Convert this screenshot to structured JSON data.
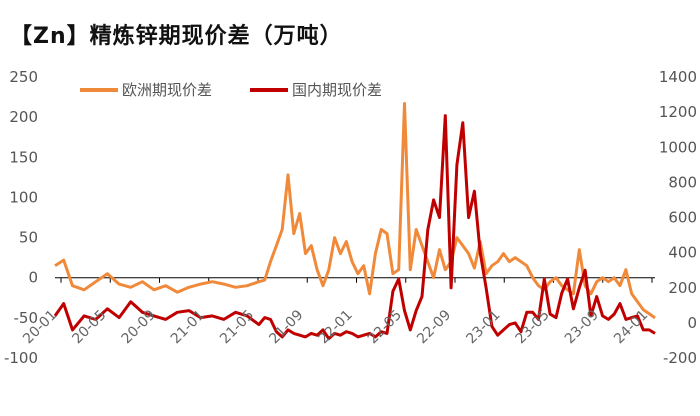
{
  "chart_data": {
    "type": "line",
    "title": "【Zn】精炼锌期现价差（万吨）",
    "y_left": {
      "ticks": [
        "250",
        "200",
        "150",
        "100",
        "50",
        "0",
        "-50",
        "-100"
      ],
      "range": [
        -100,
        250
      ]
    },
    "y_right": {
      "ticks": [
        "1400",
        "1200",
        "1000",
        "800",
        "600",
        "400",
        "200",
        "0",
        "-200"
      ],
      "range": [
        -200,
        1400
      ]
    },
    "x_ticks": [
      "20-01",
      "20-05",
      "20-09",
      "21-01",
      "21-05",
      "21-09",
      "22-01",
      "22-05",
      "22-09",
      "23-01",
      "23-05",
      "23-09",
      "24-01"
    ],
    "grid": false,
    "legend_position": "top-left",
    "series": [
      {
        "name": "欧洲期现价差",
        "axis": "left",
        "color": "#F08A3A",
        "points": [
          [
            0,
            15
          ],
          [
            1.5,
            22
          ],
          [
            3,
            -10
          ],
          [
            5,
            -15
          ],
          [
            7,
            -5
          ],
          [
            9,
            5
          ],
          [
            11,
            -8
          ],
          [
            13,
            -12
          ],
          [
            15,
            -5
          ],
          [
            17,
            -15
          ],
          [
            19,
            -10
          ],
          [
            21,
            -18
          ],
          [
            23,
            -12
          ],
          [
            25,
            -8
          ],
          [
            27,
            -5
          ],
          [
            29,
            -8
          ],
          [
            31,
            -12
          ],
          [
            33,
            -10
          ],
          [
            35,
            -5
          ],
          [
            36,
            -3
          ],
          [
            37,
            20
          ],
          [
            38,
            40
          ],
          [
            39,
            60
          ],
          [
            40,
            128
          ],
          [
            41,
            55
          ],
          [
            42,
            80
          ],
          [
            43,
            30
          ],
          [
            44,
            40
          ],
          [
            45,
            10
          ],
          [
            46,
            -10
          ],
          [
            47,
            10
          ],
          [
            48,
            50
          ],
          [
            49,
            30
          ],
          [
            50,
            45
          ],
          [
            51,
            20
          ],
          [
            52,
            5
          ],
          [
            53,
            15
          ],
          [
            54,
            -20
          ],
          [
            55,
            30
          ],
          [
            56,
            60
          ],
          [
            57,
            55
          ],
          [
            58,
            5
          ],
          [
            59,
            10
          ],
          [
            60,
            217
          ],
          [
            61,
            10
          ],
          [
            62,
            60
          ],
          [
            63,
            40
          ],
          [
            64,
            20
          ],
          [
            65,
            0
          ],
          [
            66,
            35
          ],
          [
            67,
            10
          ],
          [
            68,
            20
          ],
          [
            69,
            50
          ],
          [
            70,
            40
          ],
          [
            71,
            30
          ],
          [
            72,
            12
          ],
          [
            73,
            45
          ],
          [
            74,
            5
          ],
          [
            75,
            15
          ],
          [
            76,
            20
          ],
          [
            77,
            30
          ],
          [
            78,
            20
          ],
          [
            79,
            25
          ],
          [
            80,
            20
          ],
          [
            81,
            15
          ],
          [
            82,
            0
          ],
          [
            83,
            -10
          ],
          [
            84,
            -15
          ],
          [
            85,
            -5
          ],
          [
            86,
            0
          ],
          [
            87,
            -10
          ],
          [
            88,
            -15
          ],
          [
            89,
            -20
          ],
          [
            90,
            35
          ],
          [
            91,
            -10
          ],
          [
            92,
            -20
          ],
          [
            93,
            -5
          ],
          [
            94,
            0
          ],
          [
            95,
            -5
          ],
          [
            96,
            0
          ],
          [
            97,
            -10
          ],
          [
            98,
            10
          ],
          [
            99,
            -20
          ],
          [
            100,
            -30
          ],
          [
            101,
            -40
          ],
          [
            102,
            -45
          ],
          [
            103,
            -50
          ]
        ]
      },
      {
        "name": "国内期现价差",
        "axis": "right",
        "color": "#C00000",
        "points": [
          [
            0,
            40
          ],
          [
            1.5,
            110
          ],
          [
            3,
            -40
          ],
          [
            5,
            40
          ],
          [
            7,
            20
          ],
          [
            9,
            80
          ],
          [
            11,
            30
          ],
          [
            13,
            120
          ],
          [
            15,
            60
          ],
          [
            17,
            40
          ],
          [
            19,
            20
          ],
          [
            21,
            60
          ],
          [
            23,
            70
          ],
          [
            25,
            30
          ],
          [
            27,
            40
          ],
          [
            29,
            20
          ],
          [
            31,
            60
          ],
          [
            33,
            40
          ],
          [
            35,
            -10
          ],
          [
            36,
            30
          ],
          [
            37,
            20
          ],
          [
            38,
            -50
          ],
          [
            39,
            -80
          ],
          [
            40,
            -40
          ],
          [
            41,
            -60
          ],
          [
            42,
            -70
          ],
          [
            43,
            -80
          ],
          [
            44,
            -60
          ],
          [
            45,
            -70
          ],
          [
            46,
            -40
          ],
          [
            47,
            -90
          ],
          [
            48,
            -60
          ],
          [
            49,
            -70
          ],
          [
            50,
            -50
          ],
          [
            51,
            -60
          ],
          [
            52,
            -80
          ],
          [
            53,
            -70
          ],
          [
            54,
            -60
          ],
          [
            55,
            -80
          ],
          [
            56,
            -50
          ],
          [
            57,
            -60
          ],
          [
            58,
            180
          ],
          [
            59,
            250
          ],
          [
            60,
            70
          ],
          [
            61,
            -40
          ],
          [
            62,
            70
          ],
          [
            63,
            150
          ],
          [
            64,
            530
          ],
          [
            65,
            700
          ],
          [
            66,
            600
          ],
          [
            67,
            1180
          ],
          [
            68,
            200
          ],
          [
            69,
            900
          ],
          [
            70,
            1140
          ],
          [
            71,
            600
          ],
          [
            72,
            750
          ],
          [
            73,
            400
          ],
          [
            74,
            200
          ],
          [
            75,
            -20
          ],
          [
            76,
            -70
          ],
          [
            77,
            -40
          ],
          [
            78,
            -10
          ],
          [
            79,
            0
          ],
          [
            80,
            -50
          ],
          [
            81,
            60
          ],
          [
            82,
            60
          ],
          [
            83,
            20
          ],
          [
            84,
            250
          ],
          [
            85,
            50
          ],
          [
            86,
            30
          ],
          [
            87,
            170
          ],
          [
            88,
            250
          ],
          [
            89,
            80
          ],
          [
            90,
            200
          ],
          [
            91,
            300
          ],
          [
            92,
            40
          ],
          [
            93,
            150
          ],
          [
            94,
            40
          ],
          [
            95,
            20
          ],
          [
            96,
            50
          ],
          [
            97,
            110
          ],
          [
            98,
            20
          ],
          [
            99,
            30
          ],
          [
            100,
            40
          ],
          [
            101,
            -40
          ],
          [
            102,
            -40
          ],
          [
            103,
            -60
          ]
        ]
      }
    ]
  }
}
